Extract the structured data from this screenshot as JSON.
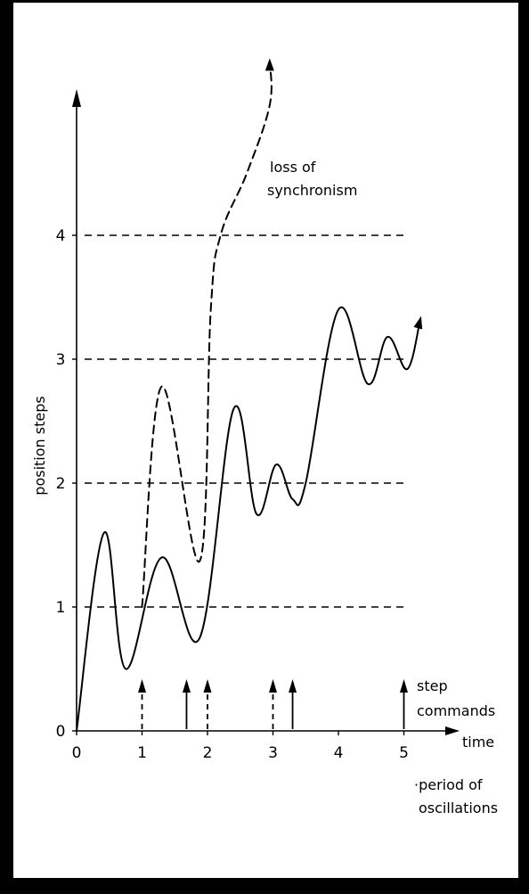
{
  "chart_data": {
    "type": "line",
    "title": "",
    "xlabel": "time",
    "xlabel_note_1": "·period of",
    "xlabel_note_2": "oscillations",
    "ylabel": "position steps",
    "xlim": [
      0,
      5.4
    ],
    "ylim": [
      0,
      5
    ],
    "x_ticks": [
      "0",
      "1",
      "2",
      "3",
      "4",
      "5"
    ],
    "y_ticks": [
      "0",
      "1",
      "2",
      "3",
      "4"
    ],
    "gridlines_y": [
      1,
      2,
      3,
      4
    ],
    "annotations": {
      "loss_of_sync_1": "loss of",
      "loss_of_sync_2": "synchronism",
      "step_commands_1": "step",
      "step_commands_2": "commands"
    },
    "series": [
      {
        "style": "solid",
        "points": [
          [
            0,
            0
          ],
          [
            0.42,
            1.6
          ],
          [
            0.75,
            0.5
          ],
          [
            1.3,
            1.4
          ],
          [
            1.88,
            0.75
          ],
          [
            2.4,
            2.6
          ],
          [
            2.75,
            1.75
          ],
          [
            3.05,
            2.15
          ],
          [
            3.3,
            1.87
          ],
          [
            3.5,
            2.0
          ],
          [
            4.0,
            3.4
          ],
          [
            4.45,
            2.8
          ],
          [
            4.75,
            3.18
          ],
          [
            5.05,
            2.92
          ],
          [
            5.25,
            3.32
          ]
        ]
      },
      {
        "style": "dashed",
        "points": [
          [
            1.0,
            1.0
          ],
          [
            1.3,
            2.78
          ],
          [
            1.88,
            1.37
          ],
          [
            2.05,
            3.4
          ],
          [
            2.2,
            4.0
          ],
          [
            2.6,
            4.5
          ],
          [
            2.95,
            5.05
          ],
          [
            2.95,
            5.4
          ]
        ]
      }
    ],
    "step_commands": [
      {
        "x": 1.0,
        "style": "dashed"
      },
      {
        "x": 1.68,
        "style": "solid"
      },
      {
        "x": 2.0,
        "style": "dashed"
      },
      {
        "x": 3.0,
        "style": "dashed"
      },
      {
        "x": 3.3,
        "style": "solid"
      },
      {
        "x": 5.0,
        "style": "solid"
      }
    ]
  }
}
